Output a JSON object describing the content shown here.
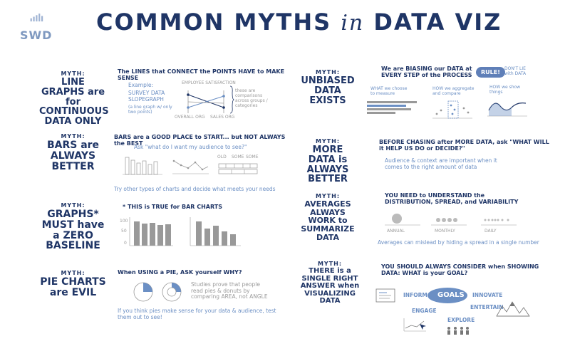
{
  "header": {
    "logo_text": "SWD",
    "title_a": "COMMON MYTHS",
    "title_in": "in",
    "title_b": "DATA VIZ"
  },
  "myth_label": "MYTH:",
  "left": [
    {
      "myth": "LINE GRAPHS are for CONTINUOUS DATA ONLY",
      "heading": "The LINES that CONNECT the POINTS HAVE to MAKE SENSE",
      "example_label": "Example:",
      "example": "SURVEY DATA SLOPEGRAPH",
      "example_note": "(a line graph w/ only two points)",
      "chart_label": "EMPLOYEE SATISFACTION",
      "axis_left": "OVERALL ORG",
      "axis_right": "SALES ORG",
      "side_note": "these are comparisons across groups / categories"
    },
    {
      "myth": "BARS are ALWAYS BETTER",
      "heading": "BARS are a GOOD PLACE to START... but NOT ALWAYS the BEST",
      "ask": "Ask \"what do I want my audience to see?\"",
      "mini_labels": [
        "OLD",
        "SOME",
        "SOME"
      ],
      "tip": "Try other types of charts and decide what meets your needs"
    },
    {
      "myth": "GRAPHS* MUST have a ZERO BASELINE",
      "heading": "* THIS is TRUE for BAR CHARTS",
      "ticks": [
        "100",
        "50",
        "0"
      ]
    },
    {
      "myth": "PIE CHARTS are EVIL",
      "heading": "When USING a PIE, ASK yourself WHY?",
      "studies": "Studies prove that people read pies & donuts by comparing AREA, not ANGLE",
      "tip": "If you think pies make sense for your data & audience, test them out to see!"
    }
  ],
  "right": [
    {
      "myth": "UNBIASED DATA EXISTS",
      "heading": "We are BIASING our DATA at EVERY STEP of the PROCESS",
      "rule": "RULE!",
      "rule_note": "DON'T LIE with DATA",
      "col1": "WHAT we choose to measure",
      "col2": "HOW we aggregate and compare",
      "col3": "HOW we show things"
    },
    {
      "myth": "MORE DATA is ALWAYS BETTER",
      "heading": "BEFORE CHASING after MORE DATA, ask \"WHAT WILL it HELP US DO or DECIDE?\"",
      "note": "Audience & context are important when it comes to the right amount of data"
    },
    {
      "myth": "AVERAGES ALWAYS WORK to SUMMARIZE DATA",
      "heading": "YOU NEED to UNDERSTAND the DISTRIBUTION, SPREAD, and VARIABILITY",
      "periods": [
        "ANNUAL",
        "MONTHLY",
        "DAILY"
      ],
      "note": "Averages can mislead by hiding a spread in a single number"
    },
    {
      "myth": "THERE is a SINGLE RIGHT ANSWER when VISUALIZING DATA",
      "heading": "YOU SHOULD ALWAYS CONSIDER when SHOWING DATA: WHAT is your GOAL?",
      "goals": "GOALS",
      "goal_words": [
        "INFORM",
        "INNOVATE",
        "ENGAGE",
        "ENTERTAIN",
        "EXPLORE"
      ]
    }
  ],
  "colors": {
    "navy": "#1f3566",
    "blue": "#6b8fc4",
    "gray": "#a9a9a9"
  }
}
